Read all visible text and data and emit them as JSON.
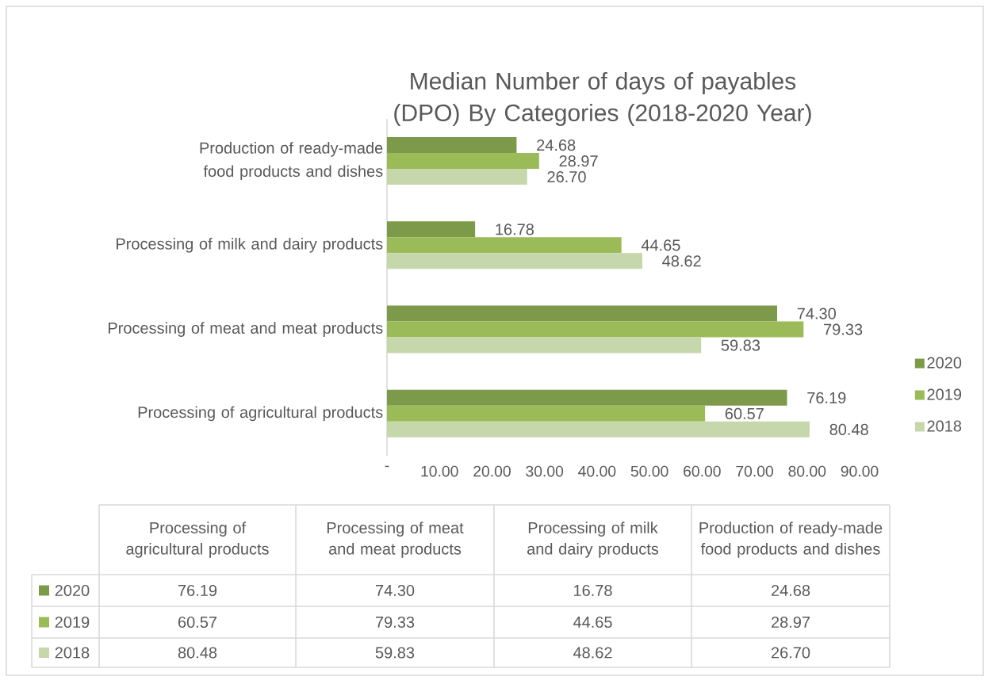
{
  "chart_data": {
    "type": "bar",
    "orientation": "horizontal",
    "title": "Median Number of days of payables (DPO) By Categories (2018-2020 Year)",
    "categories": [
      "Production of ready-made food products and dishes",
      "Processing of milk and dairy products",
      "Processing of meat and meat products",
      "Processing of agricultural products"
    ],
    "series": [
      {
        "name": "2020",
        "color": "#7d9a4a",
        "values": [
          24.68,
          16.78,
          74.3,
          76.19
        ],
        "value_labels": [
          "24.68",
          "16.78",
          "74.30",
          "76.19"
        ]
      },
      {
        "name": "2019",
        "color": "#9bbb59",
        "values": [
          28.97,
          44.65,
          79.33,
          60.57
        ],
        "value_labels": [
          "28.97",
          "44.65",
          "79.33",
          "60.57"
        ]
      },
      {
        "name": "2018",
        "color": "#c6d7ab",
        "values": [
          26.7,
          48.62,
          59.83,
          80.48
        ],
        "value_labels": [
          "26.70",
          "48.62",
          "59.83",
          "80.48"
        ]
      }
    ],
    "xlim": [
      0,
      90
    ],
    "xticks": [
      {
        "value": 0,
        "label": "-"
      },
      {
        "value": 10,
        "label": "10.00"
      },
      {
        "value": 20,
        "label": "20.00"
      },
      {
        "value": 30,
        "label": "30.00"
      },
      {
        "value": 40,
        "label": "40.00"
      },
      {
        "value": 50,
        "label": "50.00"
      },
      {
        "value": 60,
        "label": "60.00"
      },
      {
        "value": 70,
        "label": "70.00"
      },
      {
        "value": 80,
        "label": "80.00"
      },
      {
        "value": 90,
        "label": "90.00"
      }
    ],
    "legend": "right"
  }
}
